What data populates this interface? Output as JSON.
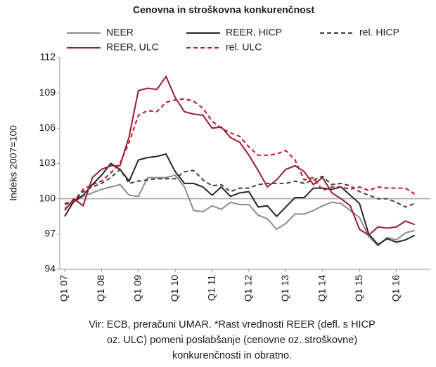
{
  "chart_data": {
    "type": "line",
    "title": "Cenovna in stroškovna konkurenčnost",
    "y_label": "Indeks 2007=100",
    "categories": [
      "Q1 07",
      null,
      null,
      null,
      "Q1 08",
      null,
      null,
      null,
      "Q1 09",
      null,
      null,
      null,
      "Q1 10",
      null,
      null,
      null,
      "Q1 11",
      null,
      null,
      null,
      "Q1 12",
      null,
      null,
      null,
      "Q1 13",
      null,
      null,
      null,
      "Q1 14",
      null,
      null,
      null,
      "Q1 15",
      null,
      null,
      null,
      "Q1 16",
      null,
      null
    ],
    "series": [
      {
        "name": "NEER",
        "color": "#8c8c8c",
        "dash": false,
        "values": [
          99.2,
          99.7,
          100.2,
          100.5,
          100.8,
          101.0,
          101.2,
          100.3,
          100.2,
          101.8,
          101.8,
          101.8,
          102.0,
          101.0,
          99.0,
          98.9,
          99.4,
          99.1,
          99.7,
          99.5,
          99.5,
          98.6,
          98.3,
          97.4,
          97.9,
          98.7,
          98.7,
          99.0,
          99.4,
          99.7,
          99.6,
          99.0,
          98.4,
          96.8,
          96.0,
          96.7,
          96.5,
          97.1,
          97.3
        ]
      },
      {
        "name": "REER, HICP",
        "color": "#262626",
        "dash": false,
        "values": [
          98.5,
          99.8,
          100.3,
          101.2,
          102.0,
          103.0,
          102.5,
          101.5,
          103.3,
          103.5,
          103.6,
          103.8,
          102.3,
          101.3,
          101.3,
          101.0,
          100.3,
          101.0,
          100.2,
          100.5,
          100.6,
          99.3,
          99.4,
          98.5,
          99.3,
          100.1,
          100.1,
          100.9,
          100.9,
          100.8,
          101.0,
          100.3,
          99.6,
          97.0,
          96.1,
          96.6,
          96.3,
          96.5,
          96.9
        ]
      },
      {
        "name": "rel. HICP",
        "color": "#404040",
        "dash": true,
        "values": [
          99.5,
          99.8,
          100.6,
          101.0,
          101.3,
          101.8,
          102.5,
          101.3,
          101.5,
          101.6,
          101.7,
          101.7,
          101.7,
          102.3,
          102.4,
          101.6,
          101.1,
          101.2,
          100.6,
          100.9,
          100.9,
          101.2,
          101.3,
          101.3,
          101.3,
          101.5,
          101.3,
          101.6,
          101.9,
          101.2,
          101.3,
          101.1,
          100.6,
          100.3,
          100.0,
          100.0,
          99.7,
          99.3,
          99.6
        ]
      },
      {
        "name": "REER, ULC",
        "color": "#9b1b30",
        "dash": false,
        "values": [
          99.0,
          100.0,
          99.4,
          101.8,
          102.5,
          102.8,
          102.8,
          105.3,
          109.2,
          109.4,
          109.3,
          110.4,
          108.6,
          107.4,
          107.2,
          107.1,
          106.0,
          106.1,
          105.2,
          104.8,
          103.7,
          102.4,
          101.0,
          101.6,
          102.5,
          102.8,
          102.3,
          101.2,
          101.8,
          100.5,
          100.0,
          99.4,
          97.4,
          96.9,
          97.6,
          97.5,
          97.6,
          98.1,
          97.8
        ]
      },
      {
        "name": "rel. ULC",
        "color": "#c0142a",
        "dash": true,
        "values": [
          99.6,
          99.8,
          100.8,
          101.2,
          101.5,
          102.2,
          103.0,
          104.8,
          107.1,
          107.5,
          107.4,
          108.2,
          108.4,
          108.5,
          108.3,
          107.7,
          106.6,
          106.0,
          105.6,
          105.3,
          104.4,
          103.7,
          103.7,
          103.8,
          104.1,
          103.3,
          101.6,
          101.8,
          100.7,
          101.0,
          101.0,
          100.8,
          101.0,
          100.7,
          101.0,
          100.9,
          100.9,
          100.9,
          100.4
        ]
      }
    ],
    "ylim": [
      94,
      112
    ],
    "yticks": [
      94,
      97,
      100,
      103,
      106,
      109,
      112
    ],
    "reference_line": 100,
    "grid": false,
    "note": [
      "Vir: ECB, preračuni UMAR. *Rast vrednosti REER (defl. s HICP",
      "oz. ULC) pomeni poslabšanje (cenovne oz. stroškovne)",
      "konkurenčnosti in obratno."
    ]
  }
}
